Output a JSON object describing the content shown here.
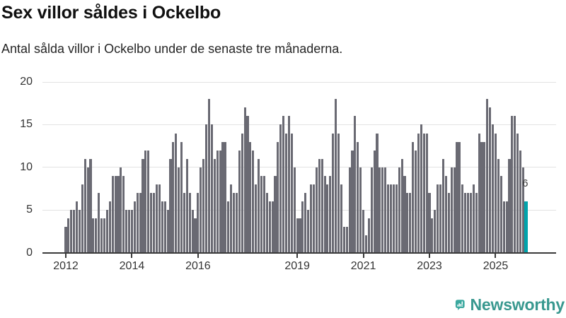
{
  "header": {
    "title": "Sex villor såldes i Ockelbo",
    "subtitle": "Antal sålda villor i Ockelbo under de senaste tre månaderna."
  },
  "chart_data": {
    "type": "bar",
    "title": "Sex villor såldes i Ockelbo",
    "xlabel": "",
    "ylabel": "",
    "x_unit": "month",
    "x_start": "2012-01",
    "x_end": "2025-12",
    "ylim": [
      0,
      20
    ],
    "y_ticks": [
      0,
      5,
      10,
      15,
      20
    ],
    "grid": "horizontal",
    "legend": "none",
    "x_tick_labels": [
      "2012",
      "2014",
      "2016",
      "2019",
      "2021",
      "2023",
      "2025"
    ],
    "x_tick_month_indices": [
      0,
      24,
      48,
      84,
      108,
      132,
      156
    ],
    "values": [
      3,
      4,
      5,
      5,
      6,
      5,
      8,
      11,
      10,
      11,
      4,
      4,
      7,
      4,
      4,
      5,
      6,
      9,
      9,
      9,
      10,
      9,
      5,
      5,
      5,
      6,
      7,
      7,
      11,
      12,
      12,
      7,
      7,
      8,
      8,
      6,
      6,
      5,
      11,
      13,
      14,
      10,
      13,
      7,
      11,
      7,
      5,
      4,
      7,
      10,
      11,
      15,
      18,
      15,
      11,
      12,
      12,
      13,
      13,
      6,
      8,
      7,
      7,
      12,
      14,
      17,
      16,
      13,
      12,
      8,
      11,
      9,
      9,
      7,
      6,
      6,
      9,
      13,
      15,
      16,
      14,
      16,
      14,
      10,
      4,
      4,
      6,
      7,
      5,
      8,
      8,
      10,
      11,
      11,
      9,
      8,
      9,
      14,
      18,
      14,
      8,
      3,
      3,
      10,
      12,
      16,
      13,
      10,
      5,
      2,
      4,
      10,
      12,
      14,
      10,
      10,
      10,
      8,
      8,
      8,
      8,
      10,
      11,
      9,
      7,
      7,
      13,
      12,
      14,
      15,
      14,
      14,
      7,
      4,
      5,
      8,
      8,
      11,
      9,
      7,
      10,
      10,
      13,
      13,
      8,
      7,
      7,
      7,
      8,
      7,
      14,
      13,
      13,
      18,
      17,
      15,
      14,
      11,
      9,
      6,
      6,
      11,
      16,
      16,
      14,
      12,
      10,
      6
    ],
    "highlight_last_bar": true,
    "highlight_label": "6",
    "colors": {
      "bar": "#6a6a73",
      "highlight": "#00a3ab",
      "gridline": "#e2e2e2",
      "axis": "#3a3a3a",
      "tick_text": "#333333"
    }
  },
  "footer": {
    "brand": "Newsworthy",
    "logo_icon": "newsworthy-speech-bubble-bar-chart-icon",
    "brand_color": "#38988f",
    "icon_color": "#3ba89f"
  }
}
